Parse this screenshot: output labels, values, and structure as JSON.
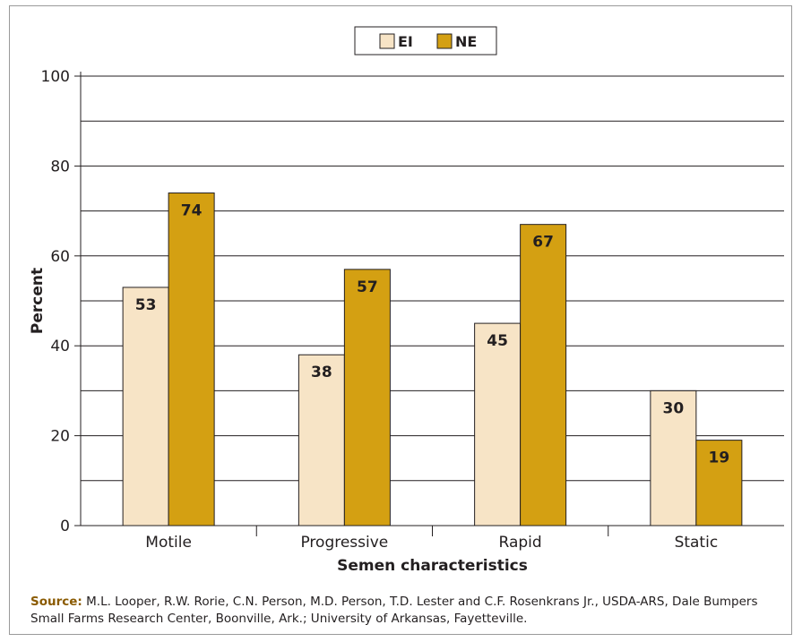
{
  "chart_data": {
    "type": "bar",
    "categories": [
      "Motile",
      "Progressive",
      "Rapid",
      "Static"
    ],
    "series": [
      {
        "name": "EI",
        "values": [
          53,
          38,
          45,
          30
        ],
        "color": "#f7e4c6"
      },
      {
        "name": "NE",
        "values": [
          74,
          57,
          67,
          19
        ],
        "color": "#d4a012"
      }
    ],
    "value_labels": [
      [
        "53",
        "38",
        "45",
        "30"
      ],
      [
        "74",
        "57",
        "67",
        "19"
      ]
    ],
    "title": "",
    "xlabel": "Semen characteristics",
    "ylabel": "Percent",
    "ylim": [
      0,
      100
    ],
    "yticks": [
      0,
      20,
      40,
      60,
      80,
      100
    ],
    "grid": true,
    "legend_position": "top-center"
  },
  "source": {
    "label": "Source:",
    "text": "M.L. Looper, R.W. Rorie, C.N. Person, M.D. Person, T.D. Lester and C.F. Rosenkrans Jr., USDA-ARS, Dale Bumpers Small Farms Research Center, Boonville, Ark.; University of Arkansas, Fayetteville."
  }
}
